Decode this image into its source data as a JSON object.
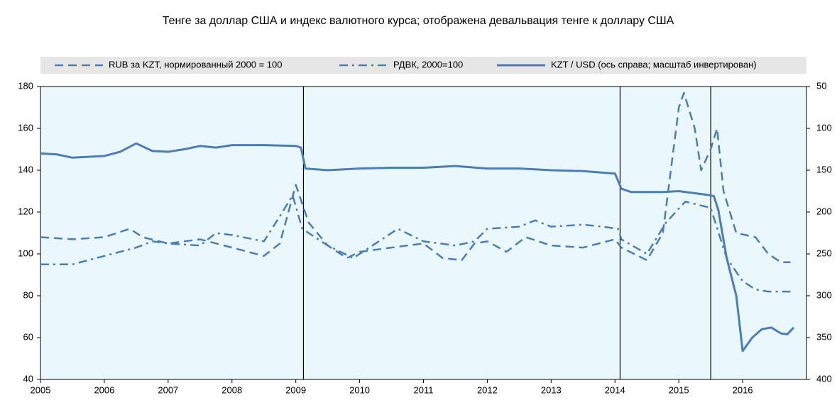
{
  "chart_data": {
    "type": "line",
    "title": "Тенге за доллар США и индекс валютного курса; отображена девальвация тенге к доллару США",
    "xlim": [
      2005,
      2017
    ],
    "xticks": [
      2005,
      2006,
      2007,
      2008,
      2009,
      2010,
      2011,
      2012,
      2013,
      2014,
      2015,
      2016
    ],
    "ylim": [
      40,
      180
    ],
    "yticks": [
      40,
      60,
      80,
      100,
      120,
      140,
      160,
      180
    ],
    "y2lim": [
      50,
      400
    ],
    "y2ticks": [
      50,
      100,
      150,
      200,
      250,
      300,
      350,
      400
    ],
    "y2_inverted": true,
    "vlines": [
      2009.12,
      2014.08,
      2015.5
    ],
    "legend": "top",
    "series": [
      {
        "name": "RUB за KZT, нормированный 2000 = 100",
        "color": "#4a7ebb",
        "style": "dashed",
        "x": [
          2005,
          2005.5,
          2006,
          2006.4,
          2006.6,
          2007,
          2007.5,
          2008,
          2008.5,
          2008.75,
          2009.0,
          2009.2,
          2009.5,
          2009.8,
          2010.0,
          2010.5,
          2011,
          2011.3,
          2011.6,
          2011.8,
          2012,
          2012.3,
          2012.6,
          2013,
          2013.5,
          2014.0,
          2014.1,
          2014.5,
          2014.75,
          2015.0,
          2015.08,
          2015.25,
          2015.35,
          2015.5,
          2015.6,
          2015.7,
          2015.9,
          2016.2,
          2016.4,
          2016.6,
          2016.75
        ],
        "values": [
          108,
          107,
          108,
          112,
          108,
          105,
          107,
          103,
          99,
          105,
          133,
          115,
          104,
          98,
          101,
          103,
          105,
          98,
          97,
          105,
          106,
          101,
          108,
          104,
          103,
          107,
          103,
          97,
          110,
          170,
          177,
          160,
          140,
          150,
          160,
          130,
          110,
          108,
          100,
          96,
          96
        ]
      },
      {
        "name": "РДВК, 2000=100",
        "color": "#4a7ebb",
        "style": "dashdot",
        "x": [
          2005,
          2005.5,
          2006,
          2006.5,
          2006.75,
          2007,
          2007.5,
          2007.75,
          2008,
          2008.5,
          2008.75,
          2008.95,
          2009.1,
          2009.5,
          2009.9,
          2010.3,
          2010.6,
          2011,
          2011.5,
          2011.8,
          2012,
          2012.5,
          2012.75,
          2013,
          2013.5,
          2013.8,
          2014.05,
          2014.1,
          2014.5,
          2014.8,
          2015.1,
          2015.5,
          2015.75,
          2016,
          2016.2,
          2016.4,
          2016.75
        ],
        "values": [
          95,
          95,
          99,
          103,
          106,
          105,
          104,
          110,
          109,
          106,
          118,
          128,
          112,
          104,
          98,
          106,
          112,
          106,
          104,
          106,
          112,
          113,
          116,
          113,
          114,
          113,
          112,
          107,
          100,
          115,
          125,
          122,
          98,
          87,
          83,
          82,
          82
        ]
      },
      {
        "name": "KZT / USD (ось справа; масштаб инвертирован)",
        "color": "#4a7ebb",
        "style": "solid",
        "axis": "y2",
        "x": [
          2005.0,
          2005.25,
          2005.5,
          2005.75,
          2006.0,
          2006.25,
          2006.5,
          2006.75,
          2007.0,
          2007.25,
          2007.5,
          2007.75,
          2008.0,
          2008.5,
          2009.0,
          2009.08,
          2009.15,
          2009.5,
          2010.0,
          2010.5,
          2011.0,
          2011.5,
          2012.0,
          2012.5,
          2013.0,
          2013.5,
          2014.0,
          2014.1,
          2014.25,
          2014.75,
          2015.0,
          2015.5,
          2015.55,
          2015.62,
          2015.75,
          2015.9,
          2016.0,
          2016.15,
          2016.3,
          2016.45,
          2016.6,
          2016.7,
          2016.8
        ],
        "values": [
          130,
          131,
          135,
          134,
          133,
          128,
          118,
          127,
          128,
          125,
          121,
          123,
          120,
          120,
          121,
          123,
          148,
          150,
          148,
          147,
          147,
          145,
          148,
          148,
          150,
          151,
          154,
          172,
          176,
          176,
          175,
          180,
          181,
          198,
          255,
          300,
          366,
          350,
          340,
          338,
          345,
          346,
          338
        ]
      }
    ]
  }
}
